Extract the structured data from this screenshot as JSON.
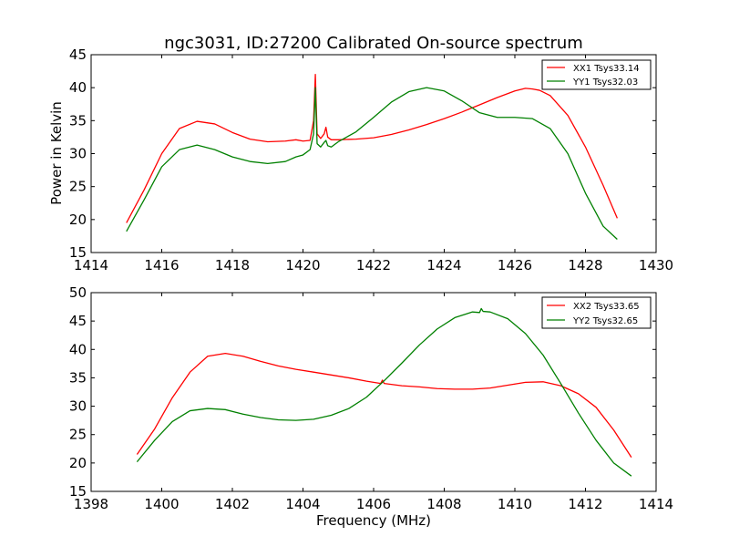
{
  "chart_data": [
    {
      "type": "line",
      "title": "ngc3031, ID:27200 Calibrated On-source spectrum",
      "xlabel": "",
      "ylabel": "Power in Kelvin",
      "xlim": [
        1414,
        1430
      ],
      "ylim": [
        15,
        45
      ],
      "xticks": [
        1414,
        1416,
        1418,
        1420,
        1422,
        1424,
        1426,
        1428,
        1430
      ],
      "yticks": [
        15,
        20,
        25,
        30,
        35,
        40,
        45
      ],
      "grid": false,
      "legend_position": "top-right",
      "series": [
        {
          "name": "XX1 Tsys33.14",
          "color": "#ff0000",
          "x": [
            1415.0,
            1415.5,
            1416.0,
            1416.5,
            1417.0,
            1417.5,
            1418.0,
            1418.5,
            1419.0,
            1419.5,
            1419.8,
            1420.0,
            1420.2,
            1420.3,
            1420.35,
            1420.4,
            1420.5,
            1420.6,
            1420.65,
            1420.7,
            1420.8,
            1421.0,
            1421.5,
            1422.0,
            1422.5,
            1423.0,
            1423.5,
            1424.0,
            1424.5,
            1425.0,
            1425.5,
            1426.0,
            1426.3,
            1426.5,
            1426.7,
            1427.0,
            1427.5,
            1428.0,
            1428.5,
            1428.9
          ],
          "values": [
            19.5,
            24.5,
            30.0,
            33.8,
            34.9,
            34.5,
            33.2,
            32.2,
            31.8,
            31.9,
            32.1,
            31.9,
            32.0,
            35.0,
            42.0,
            33.0,
            32.3,
            33.0,
            34.0,
            32.5,
            32.1,
            32.1,
            32.2,
            32.4,
            32.9,
            33.6,
            34.4,
            35.3,
            36.3,
            37.4,
            38.5,
            39.5,
            39.9,
            39.8,
            39.6,
            38.8,
            35.8,
            31.0,
            25.2,
            20.2
          ]
        },
        {
          "name": "YY1 Tsys32.03",
          "color": "#008000",
          "x": [
            1415.0,
            1415.5,
            1416.0,
            1416.5,
            1417.0,
            1417.5,
            1418.0,
            1418.5,
            1419.0,
            1419.5,
            1419.8,
            1420.0,
            1420.2,
            1420.3,
            1420.35,
            1420.4,
            1420.5,
            1420.6,
            1420.65,
            1420.7,
            1420.8,
            1421.0,
            1421.5,
            1422.0,
            1422.5,
            1423.0,
            1423.5,
            1424.0,
            1424.5,
            1425.0,
            1425.5,
            1426.0,
            1426.5,
            1427.0,
            1427.5,
            1428.0,
            1428.5,
            1428.9
          ],
          "values": [
            18.2,
            23.0,
            28.0,
            30.6,
            31.3,
            30.6,
            29.5,
            28.8,
            28.5,
            28.8,
            29.5,
            29.8,
            30.6,
            33.0,
            40.0,
            31.5,
            31.0,
            31.7,
            32.0,
            31.2,
            31.0,
            31.8,
            33.3,
            35.5,
            37.8,
            39.4,
            40.0,
            39.5,
            38.0,
            36.2,
            35.5,
            35.5,
            35.3,
            33.8,
            30.0,
            24.0,
            19.0,
            17.0
          ]
        }
      ]
    },
    {
      "type": "line",
      "title": "",
      "xlabel": "Frequency (MHz)",
      "ylabel": "",
      "xlim": [
        1398,
        1414
      ],
      "ylim": [
        15,
        50
      ],
      "xticks": [
        1398,
        1400,
        1402,
        1404,
        1406,
        1408,
        1410,
        1412,
        1414
      ],
      "yticks": [
        15,
        20,
        25,
        30,
        35,
        40,
        45,
        50
      ],
      "grid": false,
      "legend_position": "top-right",
      "series": [
        {
          "name": "XX2 Tsys33.65",
          "color": "#ff0000",
          "x": [
            1399.3,
            1399.8,
            1400.3,
            1400.8,
            1401.3,
            1401.8,
            1402.3,
            1402.8,
            1403.3,
            1403.8,
            1404.3,
            1404.8,
            1405.3,
            1405.8,
            1406.2,
            1406.25,
            1406.3,
            1406.8,
            1407.3,
            1407.8,
            1408.3,
            1408.8,
            1409.3,
            1409.8,
            1410.3,
            1410.8,
            1411.3,
            1411.8,
            1412.3,
            1412.8,
            1413.3
          ],
          "values": [
            21.5,
            26.0,
            31.5,
            36.0,
            38.8,
            39.3,
            38.8,
            37.9,
            37.1,
            36.5,
            36.0,
            35.5,
            35.0,
            34.4,
            34.0,
            34.6,
            34.0,
            33.6,
            33.4,
            33.1,
            33.0,
            33.0,
            33.2,
            33.7,
            34.2,
            34.3,
            33.6,
            32.2,
            29.8,
            25.8,
            21.0
          ]
        },
        {
          "name": "YY2 Tsys32.65",
          "color": "#008000",
          "x": [
            1399.3,
            1399.8,
            1400.3,
            1400.8,
            1401.3,
            1401.8,
            1402.3,
            1402.8,
            1403.3,
            1403.8,
            1404.3,
            1404.8,
            1405.3,
            1405.8,
            1406.3,
            1406.8,
            1407.3,
            1407.8,
            1408.3,
            1408.8,
            1409.0,
            1409.05,
            1409.1,
            1409.3,
            1409.8,
            1410.3,
            1410.8,
            1411.3,
            1411.8,
            1412.3,
            1412.8,
            1413.3
          ],
          "values": [
            20.2,
            24.0,
            27.3,
            29.2,
            29.6,
            29.4,
            28.6,
            28.0,
            27.6,
            27.5,
            27.7,
            28.4,
            29.6,
            31.6,
            34.5,
            37.6,
            40.8,
            43.6,
            45.6,
            46.6,
            46.5,
            47.2,
            46.7,
            46.6,
            45.4,
            42.8,
            39.0,
            34.0,
            28.8,
            24.0,
            20.0,
            17.7
          ]
        }
      ]
    }
  ]
}
